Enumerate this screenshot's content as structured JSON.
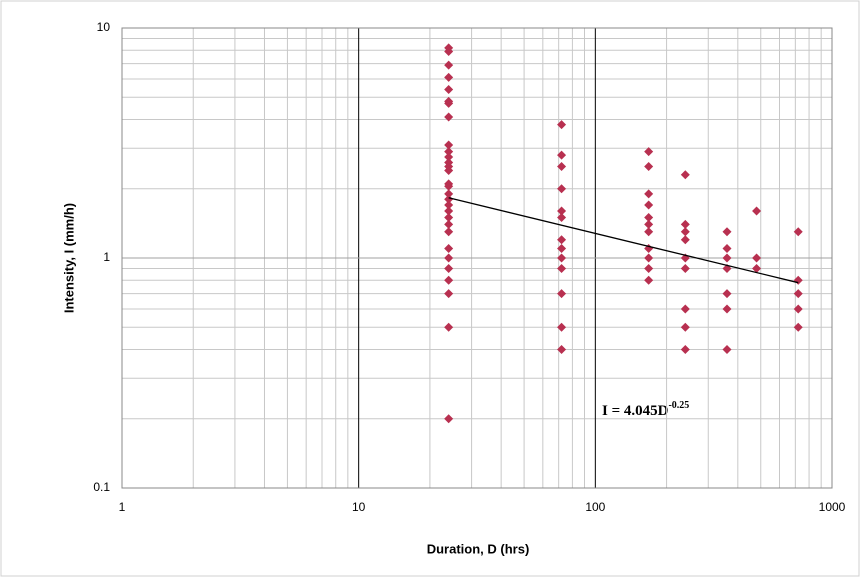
{
  "chart_data": {
    "type": "scatter",
    "xlabel": "Duration, D (hrs)",
    "ylabel": "Intensity, I (mm/h)",
    "xscale": "log",
    "yscale": "log",
    "xlim": [
      1,
      1000
    ],
    "ylim": [
      0.1,
      10
    ],
    "xticks": [
      1,
      10,
      100,
      1000
    ],
    "yticks": [
      0.1,
      1,
      10
    ],
    "grid": true,
    "series": [
      {
        "color": "#b83050",
        "x": [
          24,
          24,
          24,
          24,
          24,
          24,
          24,
          24,
          24,
          24,
          24,
          24,
          24,
          24,
          24,
          24,
          24,
          24,
          24,
          24,
          24,
          24,
          24,
          24,
          24,
          24,
          24,
          24,
          24,
          24,
          72,
          72,
          72,
          72,
          72,
          72,
          72,
          72,
          72,
          72,
          72,
          72,
          72,
          168,
          168,
          168,
          168,
          168,
          168,
          168,
          168,
          168,
          168,
          168,
          240,
          240,
          240,
          240,
          240,
          240,
          240,
          240,
          240,
          360,
          360,
          360,
          360,
          360,
          360,
          360,
          480,
          480,
          480,
          720,
          720,
          720,
          720,
          720
        ],
        "values": [
          8.2,
          7.9,
          6.9,
          6.1,
          5.4,
          4.8,
          4.7,
          4.1,
          3.1,
          2.9,
          2.75,
          2.6,
          2.5,
          2.4,
          2.1,
          2.05,
          1.9,
          1.8,
          1.7,
          1.6,
          1.5,
          1.4,
          1.3,
          1.1,
          1.0,
          0.9,
          0.8,
          0.7,
          0.5,
          0.2,
          3.8,
          2.8,
          2.5,
          2.0,
          1.6,
          1.5,
          1.2,
          1.1,
          1.0,
          0.9,
          0.7,
          0.5,
          0.4,
          2.9,
          2.5,
          1.9,
          1.7,
          1.5,
          1.4,
          1.3,
          1.1,
          1.0,
          0.9,
          0.8,
          2.3,
          1.4,
          1.3,
          1.2,
          1.0,
          0.9,
          0.6,
          0.5,
          0.4,
          1.3,
          1.1,
          1.0,
          0.9,
          0.7,
          0.6,
          0.4,
          1.6,
          1.0,
          0.9,
          1.3,
          0.8,
          0.7,
          0.6,
          0.5
        ]
      }
    ],
    "trendline": {
      "color": "#000000",
      "x": [
        24,
        720
      ],
      "values": [
        1.828,
        0.781
      ]
    },
    "annotation": {
      "text": "I = 4.045D",
      "superscript": "-0.25"
    }
  }
}
